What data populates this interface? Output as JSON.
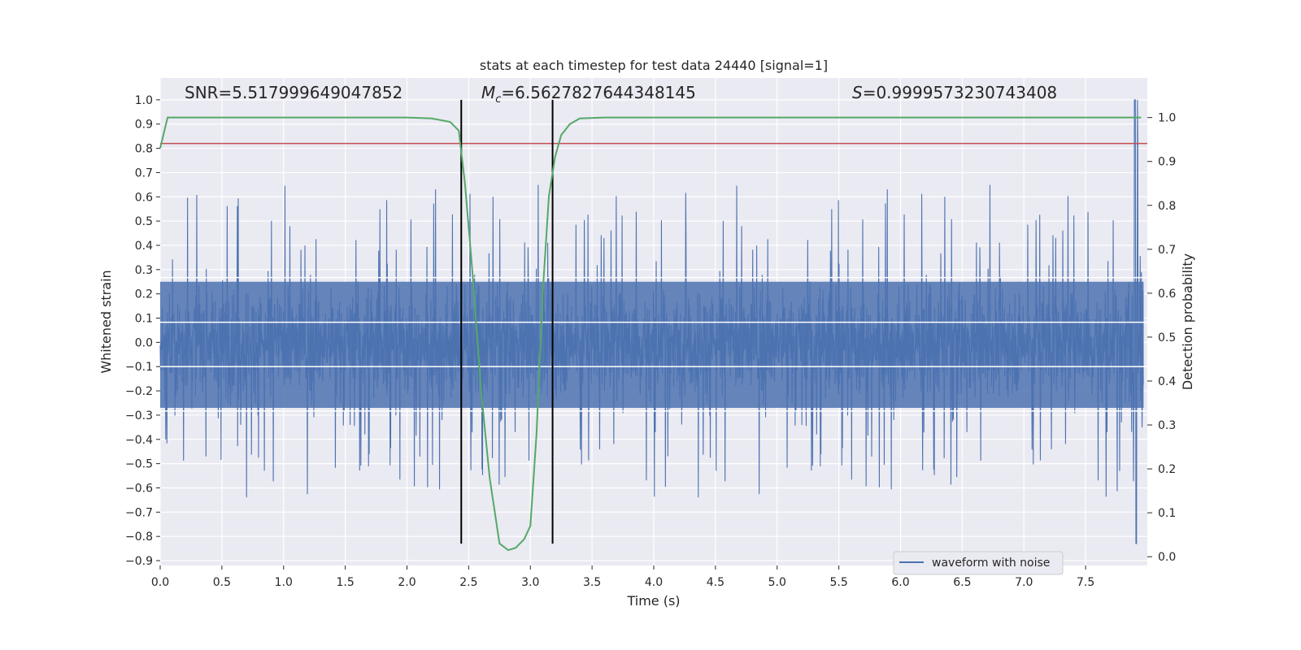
{
  "chart_data": {
    "type": "line",
    "title": "stats at each timestep for test data 24440 [signal=1]",
    "xlabel": "Time (s)",
    "ylabel": "Whitened strain",
    "y2label": "Detection probability",
    "xlim": [
      0.0,
      8.0
    ],
    "ylim": [
      -0.92,
      1.09
    ],
    "y2lim": [
      -0.02,
      1.09
    ],
    "xticks": [
      "0.0",
      "0.5",
      "1.0",
      "1.5",
      "2.0",
      "2.5",
      "3.0",
      "3.5",
      "4.0",
      "4.5",
      "5.0",
      "5.5",
      "6.0",
      "6.5",
      "7.0",
      "7.5"
    ],
    "yticks": [
      "1.0",
      "0.9",
      "0.8",
      "0.7",
      "0.6",
      "0.5",
      "0.4",
      "0.3",
      "0.2",
      "0.1",
      "0.0",
      "−0.1",
      "−0.2",
      "−0.3",
      "−0.4",
      "−0.5",
      "−0.6",
      "−0.7",
      "−0.8",
      "−0.9"
    ],
    "y2ticks": [
      "1.0",
      "0.9",
      "0.8",
      "0.7",
      "0.6",
      "0.5",
      "0.4",
      "0.3",
      "0.2",
      "0.1",
      "0.0"
    ],
    "annotations": {
      "snr": "SNR=5.517999649047852",
      "mc_symbol": "M",
      "mc_sub": "c",
      "mc_value": "=6.5627827644348145",
      "s_symbol": "S",
      "s_value": "=0.9999573230743408"
    },
    "threshold_y": 0.82,
    "vertical_lines_x": [
      2.44,
      3.18
    ],
    "legend": {
      "label": "waveform with noise",
      "placement": "lower right"
    },
    "series": [
      {
        "name": "waveform with noise",
        "axis": "left",
        "color": "#4c72b0",
        "description_envelope": {
          "typical_max": 0.42,
          "typical_min": -0.45,
          "peak_max": 1.0,
          "peak_min": -0.83,
          "peak_x": 7.9
        }
      },
      {
        "axis": "right",
        "color": "#55a868",
        "x": [
          0.0,
          0.06,
          0.2,
          0.5,
          1.0,
          1.5,
          2.0,
          2.2,
          2.35,
          2.42,
          2.47,
          2.53,
          2.6,
          2.67,
          2.75,
          2.82,
          2.88,
          2.95,
          3.0,
          3.05,
          3.1,
          3.15,
          3.2,
          3.25,
          3.32,
          3.4,
          3.6,
          4.0,
          5.0,
          6.0,
          7.0,
          7.95
        ],
        "y": [
          0.93,
          1.0,
          1.0,
          1.0,
          1.0,
          1.0,
          1.0,
          0.998,
          0.99,
          0.97,
          0.85,
          0.65,
          0.38,
          0.18,
          0.03,
          0.015,
          0.02,
          0.04,
          0.07,
          0.28,
          0.6,
          0.82,
          0.91,
          0.96,
          0.985,
          0.998,
          1.0,
          1.0,
          1.0,
          1.0,
          1.0,
          1.0
        ]
      }
    ],
    "threshold_color": "#c44e52",
    "background": "#eaeaf2"
  }
}
